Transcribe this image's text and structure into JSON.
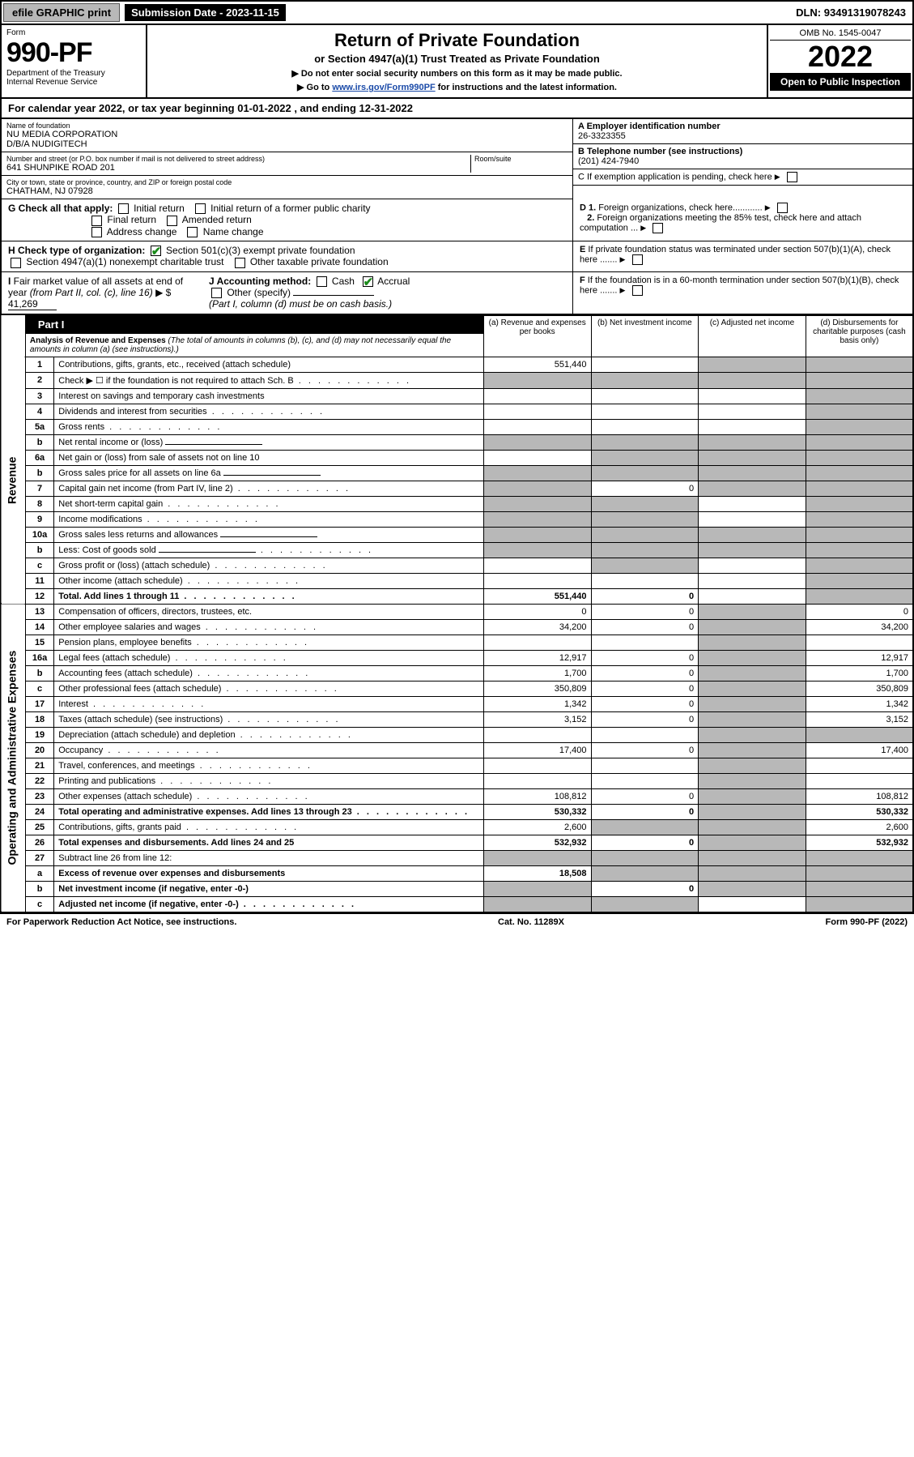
{
  "top": {
    "efile": "efile GRAPHIC print",
    "submission_label": "Submission Date - ",
    "submission_date": "2023-11-15",
    "dln_label": "DLN: ",
    "dln": "93491319078243"
  },
  "header": {
    "form_word": "Form",
    "form_no": "990-PF",
    "dept": "Department of the Treasury",
    "irs": "Internal Revenue Service",
    "title": "Return of Private Foundation",
    "subtitle": "or Section 4947(a)(1) Trust Treated as Private Foundation",
    "instr1": "▶ Do not enter social security numbers on this form as it may be made public.",
    "instr2_pre": "▶ Go to ",
    "instr2_link": "www.irs.gov/Form990PF",
    "instr2_post": " for instructions and the latest information.",
    "omb": "OMB No. 1545-0047",
    "year": "2022",
    "open": "Open to Public Inspection"
  },
  "calyear": "For calendar year 2022, or tax year beginning 01-01-2022 , and ending 12-31-2022",
  "foundation": {
    "name_label": "Name of foundation",
    "name": "NU MEDIA CORPORATION",
    "dba": "D/B/A NUDIGITECH",
    "addr_label": "Number and street (or P.O. box number if mail is not delivered to street address)",
    "addr": "641 SHUNPIKE ROAD 201",
    "room_label": "Room/suite",
    "city_label": "City or town, state or province, country, and ZIP or foreign postal code",
    "city": "CHATHAM, NJ  07928",
    "a_label": "A Employer identification number",
    "a_val": "26-3323355",
    "b_label": "B Telephone number (see instructions)",
    "b_val": "(201) 424-7940",
    "c_label": "C If exemption application is pending, check here"
  },
  "checks": {
    "g_label": "G Check all that apply:",
    "g_opts": [
      "Initial return",
      "Initial return of a former public charity",
      "Final return",
      "Amended return",
      "Address change",
      "Name change"
    ],
    "h_label": "H Check type of organization:",
    "h_1": "Section 501(c)(3) exempt private foundation",
    "h_2": "Section 4947(a)(1) nonexempt charitable trust",
    "h_3": "Other taxable private foundation",
    "i_label": "I Fair market value of all assets at end of year (from Part II, col. (c), line 16) ▶ $",
    "i_val": "41,269",
    "j_label": "J Accounting method:",
    "j_cash": "Cash",
    "j_accrual": "Accrual",
    "j_other": "Other (specify)",
    "j_note": "(Part I, column (d) must be on cash basis.)",
    "d1": "D 1. Foreign organizations, check here............",
    "d2": "2. Foreign organizations meeting the 85% test, check here and attach computation ...",
    "e": "E If private foundation status was terminated under section 507(b)(1)(A), check here .......",
    "f": "F If the foundation is in a 60-month termination under section 507(b)(1)(B), check here ......."
  },
  "part1": {
    "label": "Part I",
    "title": "Analysis of Revenue and Expenses",
    "note": "(The total of amounts in columns (b), (c), and (d) may not necessarily equal the amounts in column (a) (see instructions).)",
    "col_a": "(a) Revenue and expenses per books",
    "col_b": "(b) Net investment income",
    "col_c": "(c) Adjusted net income",
    "col_d": "(d) Disbursements for charitable purposes (cash basis only)"
  },
  "side": {
    "revenue": "Revenue",
    "expenses": "Operating and Administrative Expenses"
  },
  "rows": [
    {
      "n": "1",
      "d": "Contributions, gifts, grants, etc., received (attach schedule)",
      "a": "551,440",
      "b": "",
      "c": "s",
      "dd": "s"
    },
    {
      "n": "2",
      "d": "Check ▶ ☐ if the foundation is not required to attach Sch. B",
      "a": "s",
      "b": "s",
      "c": "s",
      "dd": "s",
      "dotted": true
    },
    {
      "n": "3",
      "d": "Interest on savings and temporary cash investments",
      "a": "",
      "b": "",
      "c": "",
      "dd": "s"
    },
    {
      "n": "4",
      "d": "Dividends and interest from securities",
      "a": "",
      "b": "",
      "c": "",
      "dd": "s",
      "dotted": true
    },
    {
      "n": "5a",
      "d": "Gross rents",
      "a": "",
      "b": "",
      "c": "",
      "dd": "s",
      "dotted": true
    },
    {
      "n": "b",
      "d": "Net rental income or (loss)",
      "a": "s",
      "b": "s",
      "c": "s",
      "dd": "s",
      "inline": true
    },
    {
      "n": "6a",
      "d": "Net gain or (loss) from sale of assets not on line 10",
      "a": "",
      "b": "s",
      "c": "s",
      "dd": "s"
    },
    {
      "n": "b",
      "d": "Gross sales price for all assets on line 6a",
      "a": "s",
      "b": "s",
      "c": "s",
      "dd": "s",
      "inline": true
    },
    {
      "n": "7",
      "d": "Capital gain net income (from Part IV, line 2)",
      "a": "s",
      "b": "0",
      "c": "s",
      "dd": "s",
      "dotted": true
    },
    {
      "n": "8",
      "d": "Net short-term capital gain",
      "a": "s",
      "b": "s",
      "c": "",
      "dd": "s",
      "dotted": true
    },
    {
      "n": "9",
      "d": "Income modifications",
      "a": "s",
      "b": "s",
      "c": "",
      "dd": "s",
      "dotted": true
    },
    {
      "n": "10a",
      "d": "Gross sales less returns and allowances",
      "a": "s",
      "b": "s",
      "c": "s",
      "dd": "s",
      "inline": true
    },
    {
      "n": "b",
      "d": "Less: Cost of goods sold",
      "a": "s",
      "b": "s",
      "c": "s",
      "dd": "s",
      "inline": true,
      "dotted": true
    },
    {
      "n": "c",
      "d": "Gross profit or (loss) (attach schedule)",
      "a": "",
      "b": "s",
      "c": "",
      "dd": "s",
      "dotted": true
    },
    {
      "n": "11",
      "d": "Other income (attach schedule)",
      "a": "",
      "b": "",
      "c": "",
      "dd": "s",
      "dotted": true
    },
    {
      "n": "12",
      "d": "Total. Add lines 1 through 11",
      "a": "551,440",
      "b": "0",
      "c": "",
      "dd": "s",
      "bold": true,
      "dotted": true
    },
    {
      "n": "13",
      "d": "Compensation of officers, directors, trustees, etc.",
      "a": "0",
      "b": "0",
      "c": "s",
      "dd": "0"
    },
    {
      "n": "14",
      "d": "Other employee salaries and wages",
      "a": "34,200",
      "b": "0",
      "c": "s",
      "dd": "34,200",
      "dotted": true
    },
    {
      "n": "15",
      "d": "Pension plans, employee benefits",
      "a": "",
      "b": "",
      "c": "s",
      "dd": "",
      "dotted": true
    },
    {
      "n": "16a",
      "d": "Legal fees (attach schedule)",
      "a": "12,917",
      "b": "0",
      "c": "s",
      "dd": "12,917",
      "dotted": true
    },
    {
      "n": "b",
      "d": "Accounting fees (attach schedule)",
      "a": "1,700",
      "b": "0",
      "c": "s",
      "dd": "1,700",
      "dotted": true
    },
    {
      "n": "c",
      "d": "Other professional fees (attach schedule)",
      "a": "350,809",
      "b": "0",
      "c": "s",
      "dd": "350,809",
      "dotted": true
    },
    {
      "n": "17",
      "d": "Interest",
      "a": "1,342",
      "b": "0",
      "c": "s",
      "dd": "1,342",
      "dotted": true
    },
    {
      "n": "18",
      "d": "Taxes (attach schedule) (see instructions)",
      "a": "3,152",
      "b": "0",
      "c": "s",
      "dd": "3,152",
      "dotted": true
    },
    {
      "n": "19",
      "d": "Depreciation (attach schedule) and depletion",
      "a": "",
      "b": "",
      "c": "s",
      "dd": "s",
      "dotted": true
    },
    {
      "n": "20",
      "d": "Occupancy",
      "a": "17,400",
      "b": "0",
      "c": "s",
      "dd": "17,400",
      "dotted": true
    },
    {
      "n": "21",
      "d": "Travel, conferences, and meetings",
      "a": "",
      "b": "",
      "c": "s",
      "dd": "",
      "dotted": true
    },
    {
      "n": "22",
      "d": "Printing and publications",
      "a": "",
      "b": "",
      "c": "s",
      "dd": "",
      "dotted": true
    },
    {
      "n": "23",
      "d": "Other expenses (attach schedule)",
      "a": "108,812",
      "b": "0",
      "c": "s",
      "dd": "108,812",
      "dotted": true
    },
    {
      "n": "24",
      "d": "Total operating and administrative expenses. Add lines 13 through 23",
      "a": "530,332",
      "b": "0",
      "c": "s",
      "dd": "530,332",
      "bold": true,
      "dotted": true
    },
    {
      "n": "25",
      "d": "Contributions, gifts, grants paid",
      "a": "2,600",
      "b": "s",
      "c": "s",
      "dd": "2,600",
      "dotted": true
    },
    {
      "n": "26",
      "d": "Total expenses and disbursements. Add lines 24 and 25",
      "a": "532,932",
      "b": "0",
      "c": "s",
      "dd": "532,932",
      "bold": true
    },
    {
      "n": "27",
      "d": "Subtract line 26 from line 12:",
      "a": "s",
      "b": "s",
      "c": "s",
      "dd": "s"
    },
    {
      "n": "a",
      "d": "Excess of revenue over expenses and disbursements",
      "a": "18,508",
      "b": "s",
      "c": "s",
      "dd": "s",
      "bold": true
    },
    {
      "n": "b",
      "d": "Net investment income (if negative, enter -0-)",
      "a": "s",
      "b": "0",
      "c": "s",
      "dd": "s",
      "bold": true
    },
    {
      "n": "c",
      "d": "Adjusted net income (if negative, enter -0-)",
      "a": "s",
      "b": "s",
      "c": "",
      "dd": "s",
      "bold": true,
      "dotted": true
    }
  ],
  "footer": {
    "left": "For Paperwork Reduction Act Notice, see instructions.",
    "center": "Cat. No. 11289X",
    "right": "Form 990-PF (2022)"
  },
  "colors": {
    "shade": "#b8b8b8",
    "link": "#1a4aa8",
    "check": "#1a8a1a"
  }
}
